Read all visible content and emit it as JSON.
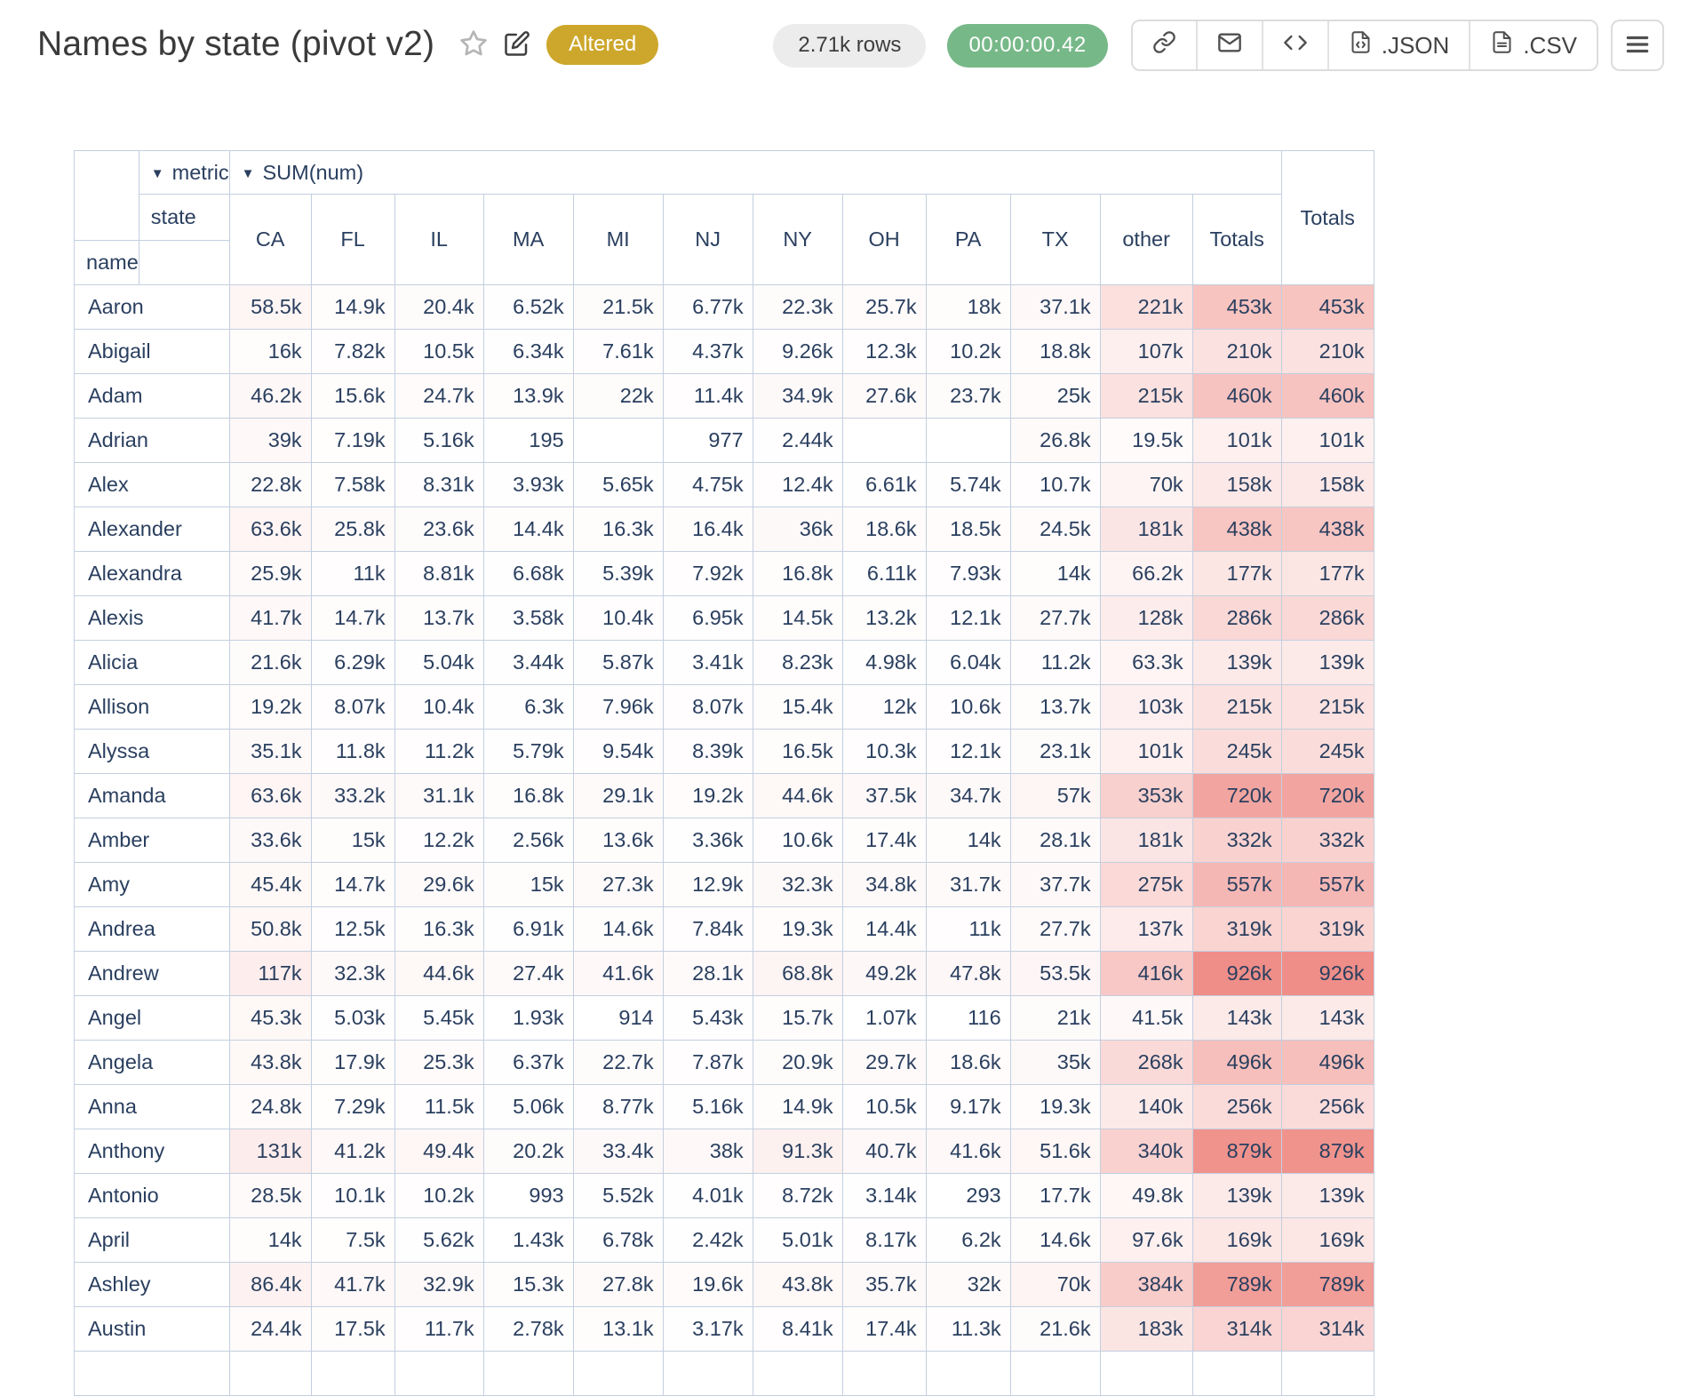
{
  "header": {
    "title": "Names by state (pivot v2)",
    "altered_badge": "Altered",
    "rows_count_badge": "2.71k rows",
    "duration_badge": "00:00:00.42",
    "export_json": ".JSON",
    "export_csv": ".CSV"
  },
  "icons": {
    "star": "favorite star outline",
    "edit": "pencil edit",
    "link": "share link",
    "mail": "email",
    "code": "embed code brackets",
    "json_file": "code file",
    "csv_file": "text file",
    "menu": "hamburger menu"
  },
  "colors": {
    "altered_badge_bg": "#cda72c",
    "duration_badge_bg": "#77b888",
    "neutral_badge_bg": "#ececec",
    "heatmap_base": "#ef8e88",
    "table_border": "#c3cfdf",
    "table_text": "#2a3f5f"
  },
  "pivot": {
    "dropdown_arrow": "▼",
    "metric_label": "metric",
    "aggregator_label": "SUM(num)",
    "col_axis_label": "state",
    "row_axis_label": "name",
    "columns": [
      "CA",
      "FL",
      "IL",
      "MA",
      "MI",
      "NJ",
      "NY",
      "OH",
      "PA",
      "TX",
      "other",
      "Totals"
    ],
    "grand_total_label": "Totals",
    "rows": [
      {
        "name": "Aaron",
        "cells": [
          "58.5k",
          "14.9k",
          "20.4k",
          "6.52k",
          "21.5k",
          "6.77k",
          "22.3k",
          "25.7k",
          "18k",
          "37.1k",
          "221k",
          "453k"
        ],
        "total": "453k"
      },
      {
        "name": "Abigail",
        "cells": [
          "16k",
          "7.82k",
          "10.5k",
          "6.34k",
          "7.61k",
          "4.37k",
          "9.26k",
          "12.3k",
          "10.2k",
          "18.8k",
          "107k",
          "210k"
        ],
        "total": "210k"
      },
      {
        "name": "Adam",
        "cells": [
          "46.2k",
          "15.6k",
          "24.7k",
          "13.9k",
          "22k",
          "11.4k",
          "34.9k",
          "27.6k",
          "23.7k",
          "25k",
          "215k",
          "460k"
        ],
        "total": "460k"
      },
      {
        "name": "Adrian",
        "cells": [
          "39k",
          "7.19k",
          "5.16k",
          "195",
          "",
          "977",
          "2.44k",
          "",
          "",
          "26.8k",
          "19.5k",
          "101k"
        ],
        "total": "101k"
      },
      {
        "name": "Alex",
        "cells": [
          "22.8k",
          "7.58k",
          "8.31k",
          "3.93k",
          "5.65k",
          "4.75k",
          "12.4k",
          "6.61k",
          "5.74k",
          "10.7k",
          "70k",
          "158k"
        ],
        "total": "158k"
      },
      {
        "name": "Alexander",
        "cells": [
          "63.6k",
          "25.8k",
          "23.6k",
          "14.4k",
          "16.3k",
          "16.4k",
          "36k",
          "18.6k",
          "18.5k",
          "24.5k",
          "181k",
          "438k"
        ],
        "total": "438k"
      },
      {
        "name": "Alexandra",
        "cells": [
          "25.9k",
          "11k",
          "8.81k",
          "6.68k",
          "5.39k",
          "7.92k",
          "16.8k",
          "6.11k",
          "7.93k",
          "14k",
          "66.2k",
          "177k"
        ],
        "total": "177k"
      },
      {
        "name": "Alexis",
        "cells": [
          "41.7k",
          "14.7k",
          "13.7k",
          "3.58k",
          "10.4k",
          "6.95k",
          "14.5k",
          "13.2k",
          "12.1k",
          "27.7k",
          "128k",
          "286k"
        ],
        "total": "286k"
      },
      {
        "name": "Alicia",
        "cells": [
          "21.6k",
          "6.29k",
          "5.04k",
          "3.44k",
          "5.87k",
          "3.41k",
          "8.23k",
          "4.98k",
          "6.04k",
          "11.2k",
          "63.3k",
          "139k"
        ],
        "total": "139k"
      },
      {
        "name": "Allison",
        "cells": [
          "19.2k",
          "8.07k",
          "10.4k",
          "6.3k",
          "7.96k",
          "8.07k",
          "15.4k",
          "12k",
          "10.6k",
          "13.7k",
          "103k",
          "215k"
        ],
        "total": "215k"
      },
      {
        "name": "Alyssa",
        "cells": [
          "35.1k",
          "11.8k",
          "11.2k",
          "5.79k",
          "9.54k",
          "8.39k",
          "16.5k",
          "10.3k",
          "12.1k",
          "23.1k",
          "101k",
          "245k"
        ],
        "total": "245k"
      },
      {
        "name": "Amanda",
        "cells": [
          "63.6k",
          "33.2k",
          "31.1k",
          "16.8k",
          "29.1k",
          "19.2k",
          "44.6k",
          "37.5k",
          "34.7k",
          "57k",
          "353k",
          "720k"
        ],
        "total": "720k"
      },
      {
        "name": "Amber",
        "cells": [
          "33.6k",
          "15k",
          "12.2k",
          "2.56k",
          "13.6k",
          "3.36k",
          "10.6k",
          "17.4k",
          "14k",
          "28.1k",
          "181k",
          "332k"
        ],
        "total": "332k"
      },
      {
        "name": "Amy",
        "cells": [
          "45.4k",
          "14.7k",
          "29.6k",
          "15k",
          "27.3k",
          "12.9k",
          "32.3k",
          "34.8k",
          "31.7k",
          "37.7k",
          "275k",
          "557k"
        ],
        "total": "557k"
      },
      {
        "name": "Andrea",
        "cells": [
          "50.8k",
          "12.5k",
          "16.3k",
          "6.91k",
          "14.6k",
          "7.84k",
          "19.3k",
          "14.4k",
          "11k",
          "27.7k",
          "137k",
          "319k"
        ],
        "total": "319k"
      },
      {
        "name": "Andrew",
        "cells": [
          "117k",
          "32.3k",
          "44.6k",
          "27.4k",
          "41.6k",
          "28.1k",
          "68.8k",
          "49.2k",
          "47.8k",
          "53.5k",
          "416k",
          "926k"
        ],
        "total": "926k"
      },
      {
        "name": "Angel",
        "cells": [
          "45.3k",
          "5.03k",
          "5.45k",
          "1.93k",
          "914",
          "5.43k",
          "15.7k",
          "1.07k",
          "116",
          "21k",
          "41.5k",
          "143k"
        ],
        "total": "143k"
      },
      {
        "name": "Angela",
        "cells": [
          "43.8k",
          "17.9k",
          "25.3k",
          "6.37k",
          "22.7k",
          "7.87k",
          "20.9k",
          "29.7k",
          "18.6k",
          "35k",
          "268k",
          "496k"
        ],
        "total": "496k"
      },
      {
        "name": "Anna",
        "cells": [
          "24.8k",
          "7.29k",
          "11.5k",
          "5.06k",
          "8.77k",
          "5.16k",
          "14.9k",
          "10.5k",
          "9.17k",
          "19.3k",
          "140k",
          "256k"
        ],
        "total": "256k"
      },
      {
        "name": "Anthony",
        "cells": [
          "131k",
          "41.2k",
          "49.4k",
          "20.2k",
          "33.4k",
          "38k",
          "91.3k",
          "40.7k",
          "41.6k",
          "51.6k",
          "340k",
          "879k"
        ],
        "total": "879k"
      },
      {
        "name": "Antonio",
        "cells": [
          "28.5k",
          "10.1k",
          "10.2k",
          "993",
          "5.52k",
          "4.01k",
          "8.72k",
          "3.14k",
          "293",
          "17.7k",
          "49.8k",
          "139k"
        ],
        "total": "139k"
      },
      {
        "name": "April",
        "cells": [
          "14k",
          "7.5k",
          "5.62k",
          "1.43k",
          "6.78k",
          "2.42k",
          "5.01k",
          "8.17k",
          "6.2k",
          "14.6k",
          "97.6k",
          "169k"
        ],
        "total": "169k"
      },
      {
        "name": "Ashley",
        "cells": [
          "86.4k",
          "41.7k",
          "32.9k",
          "15.3k",
          "27.8k",
          "19.6k",
          "43.8k",
          "35.7k",
          "32k",
          "70k",
          "384k",
          "789k"
        ],
        "total": "789k"
      },
      {
        "name": "Austin",
        "cells": [
          "24.4k",
          "17.5k",
          "11.7k",
          "2.78k",
          "13.1k",
          "3.17k",
          "8.41k",
          "17.4k",
          "11.3k",
          "21.6k",
          "183k",
          "314k"
        ],
        "total": "314k"
      }
    ]
  }
}
